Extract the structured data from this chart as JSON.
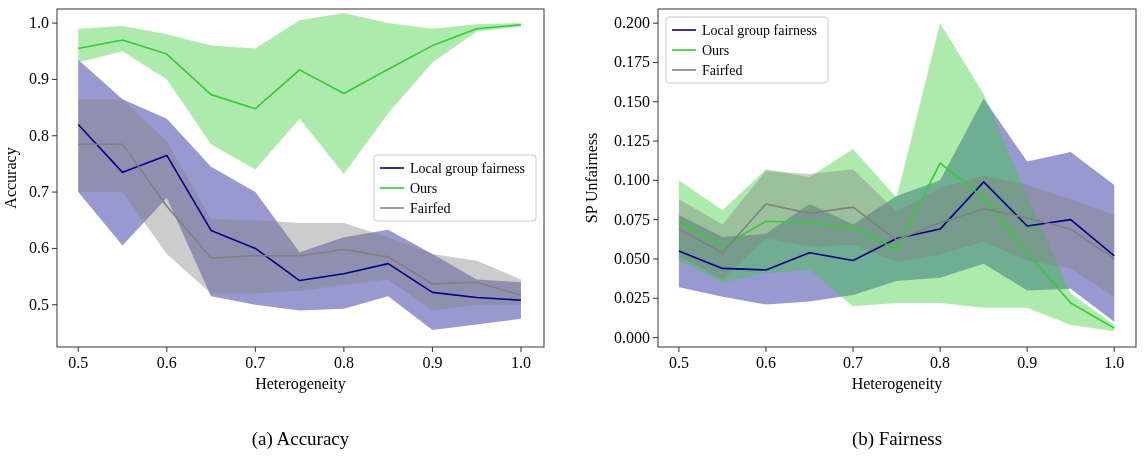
{
  "chart_data": [
    {
      "type": "line",
      "title": "(a) Accuracy",
      "xlabel": "Heterogeneity",
      "ylabel": "Accuracy",
      "x": [
        0.5,
        0.55,
        0.6,
        0.65,
        0.7,
        0.75,
        0.8,
        0.85,
        0.9,
        0.95,
        1.0
      ],
      "series": [
        {
          "name": "Local group fairness",
          "color": "#00008b",
          "values": [
            0.82,
            0.735,
            0.765,
            0.632,
            0.6,
            0.543,
            0.555,
            0.573,
            0.522,
            0.513,
            0.508
          ],
          "lower": [
            0.7,
            0.605,
            0.69,
            0.515,
            0.5,
            0.49,
            0.493,
            0.515,
            0.455,
            0.465,
            0.475
          ],
          "upper": [
            0.935,
            0.865,
            0.83,
            0.745,
            0.7,
            0.593,
            0.62,
            0.633,
            0.59,
            0.545,
            0.54
          ]
        },
        {
          "name": "Ours",
          "color": "#32cd32",
          "values": [
            0.955,
            0.97,
            0.945,
            0.873,
            0.848,
            0.917,
            0.875,
            0.918,
            0.96,
            0.99,
            0.997
          ],
          "lower": [
            0.93,
            0.95,
            0.9,
            0.785,
            0.74,
            0.83,
            0.732,
            0.84,
            0.93,
            0.985,
            0.994
          ],
          "upper": [
            0.99,
            0.995,
            0.98,
            0.96,
            0.955,
            1.005,
            1.018,
            1.0,
            0.99,
            0.998,
            1.0
          ]
        },
        {
          "name": "Fairfed",
          "color": "#808080",
          "values": [
            0.785,
            0.785,
            0.675,
            0.583,
            0.587,
            0.587,
            0.598,
            0.585,
            0.537,
            0.54,
            0.517
          ],
          "lower": [
            0.7,
            0.7,
            0.59,
            0.52,
            0.52,
            0.525,
            0.535,
            0.545,
            0.49,
            0.5,
            0.5
          ],
          "upper": [
            0.865,
            0.865,
            0.79,
            0.652,
            0.65,
            0.645,
            0.645,
            0.62,
            0.59,
            0.578,
            0.545
          ]
        }
      ],
      "xlim": [
        0.476,
        1.026
      ],
      "ylim": [
        0.425,
        1.025
      ],
      "xticks": [
        0.5,
        0.6,
        0.7,
        0.8,
        0.9,
        {
          "value": 1,
          "label": "1.0"
        }
      ],
      "yticks": [
        0.5,
        0.6,
        0.7,
        0.8,
        0.9,
        {
          "value": 1,
          "label": "1.0"
        }
      ],
      "legend": "center right",
      "grid": false
    },
    {
      "type": "line",
      "title": "(b) Fairness",
      "xlabel": "Heterogeneity",
      "ylabel": "SP Unfairness",
      "x": [
        0.5,
        0.55,
        0.6,
        0.65,
        0.7,
        0.75,
        0.8,
        0.85,
        0.9,
        0.95,
        1.0
      ],
      "series": [
        {
          "name": "Local group fairness",
          "color": "#00008b",
          "values": [
            0.055,
            0.044,
            0.043,
            0.054,
            0.049,
            0.063,
            0.069,
            0.099,
            0.071,
            0.075,
            0.052
          ],
          "lower": [
            0.032,
            0.026,
            0.021,
            0.023,
            0.027,
            0.036,
            0.038,
            0.047,
            0.03,
            0.031,
            0.01
          ],
          "upper": [
            0.078,
            0.064,
            0.066,
            0.085,
            0.072,
            0.09,
            0.1,
            0.152,
            0.112,
            0.118,
            0.097
          ]
        },
        {
          "name": "Ours",
          "color": "#32cd32",
          "values": [
            0.074,
            0.058,
            0.074,
            0.073,
            0.07,
            0.056,
            0.111,
            0.089,
            0.054,
            0.022,
            0.006
          ],
          "lower": [
            0.049,
            0.035,
            0.041,
            0.043,
            0.02,
            0.022,
            0.022,
            0.019,
            0.019,
            0.008,
            0.004
          ],
          "upper": [
            0.1,
            0.081,
            0.107,
            0.102,
            0.12,
            0.089,
            0.2,
            0.155,
            0.09,
            0.028,
            0.008
          ]
        },
        {
          "name": "Fairfed",
          "color": "#808080",
          "values": [
            0.069,
            0.054,
            0.085,
            0.079,
            0.083,
            0.062,
            0.073,
            0.082,
            0.076,
            0.069,
            0.05
          ],
          "lower": [
            0.052,
            0.037,
            0.063,
            0.058,
            0.059,
            0.048,
            0.053,
            0.061,
            0.049,
            0.044,
            0.026
          ],
          "upper": [
            0.088,
            0.072,
            0.106,
            0.104,
            0.107,
            0.08,
            0.095,
            0.103,
            0.097,
            0.088,
            0.078
          ]
        }
      ],
      "xlim": [
        0.476,
        1.025
      ],
      "ylim": [
        -0.006,
        0.209
      ],
      "xticks": [
        0.5,
        0.6,
        0.7,
        0.8,
        0.9,
        {
          "value": 1,
          "label": "1.0"
        }
      ],
      "yticks": [
        {
          "value": 0,
          "label": "0.000"
        },
        {
          "value": 0.025,
          "label": "0.025"
        },
        {
          "value": 0.05,
          "label": "0.050"
        },
        {
          "value": 0.075,
          "label": "0.075"
        },
        {
          "value": 0.1,
          "label": "0.100"
        },
        {
          "value": 0.125,
          "label": "0.125"
        },
        {
          "value": 0.15,
          "label": "0.150"
        },
        {
          "value": 0.175,
          "label": "0.175"
        },
        {
          "value": 0.2,
          "label": "0.200"
        }
      ],
      "legend": "top left",
      "grid": false
    }
  ]
}
